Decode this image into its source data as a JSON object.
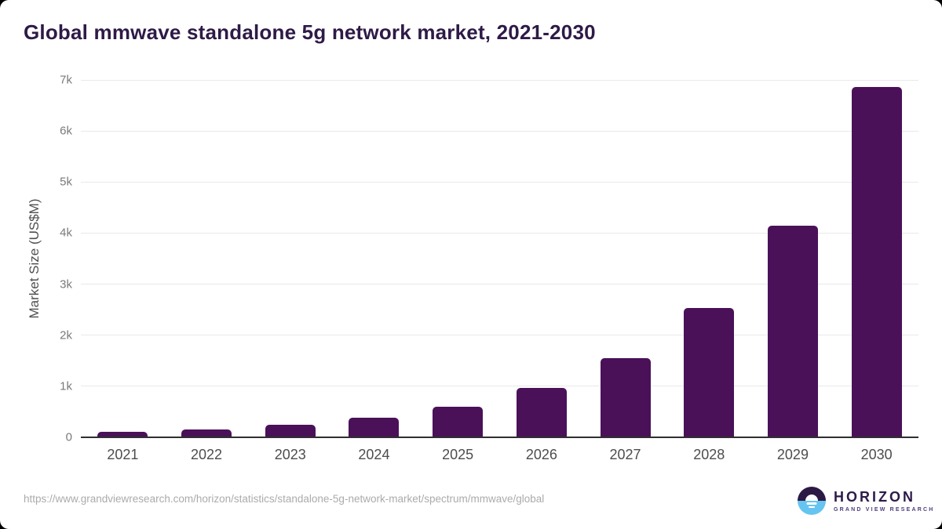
{
  "header": {
    "title": "Global mmwave standalone 5g network market, 2021-2030"
  },
  "chart_data": {
    "type": "bar",
    "title": "Global mmwave standalone 5g network market, 2021-2030",
    "categories": [
      "2021",
      "2022",
      "2023",
      "2024",
      "2025",
      "2026",
      "2027",
      "2028",
      "2029",
      "2030"
    ],
    "values": [
      110,
      155,
      250,
      385,
      600,
      960,
      1550,
      2530,
      4150,
      6860
    ],
    "xlabel": "",
    "ylabel": "Market Size (US$M)",
    "ylim": [
      0,
      7000
    ],
    "ytick_step": 1000,
    "ytick_labels": [
      "0",
      "1k",
      "2k",
      "3k",
      "4k",
      "5k",
      "6k",
      "7k"
    ],
    "grid": "horizontal gridlines on, behind bars",
    "legend": "none",
    "bar_color": "#4a1159"
  },
  "footer": {
    "source_url": "https://www.grandviewresearch.com/horizon/statistics/standalone-5g-network-market/spectrum/mmwave/global",
    "logo": {
      "brand": "HORIZON",
      "tagline": "GRAND VIEW RESEARCH",
      "icon": "horizon-sun-circle-icon"
    }
  },
  "colors": {
    "title": "#2e1a47",
    "bar": "#4a1159",
    "gridline": "#e9e9e9",
    "axis_line": "#2f2f2f",
    "ytick_label": "#7a7a7a",
    "xtick_label": "#4d4d4d",
    "ylabel": "#4f4f4f",
    "source_text": "#ababab",
    "logo_dark": "#2c1a45",
    "logo_blue": "#66c5f0",
    "logo_text": "#2e1a47",
    "logo_tagline": "#4e3d7d"
  }
}
